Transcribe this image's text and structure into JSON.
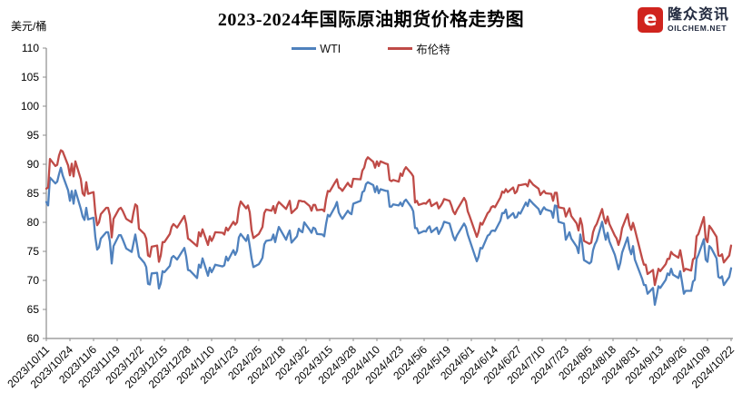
{
  "logo": {
    "brand": "隆众资讯",
    "domain": "OILCHEM.NET",
    "icon_glyph": "e",
    "icon_color": "#d0241e",
    "text_color": "#232b40"
  },
  "chart_data": {
    "type": "line",
    "title": "2023-2024年国际原油期货价格走势图",
    "ylabel_unit": "美元/桶",
    "ylim": [
      60,
      110
    ],
    "ytick_step": 5,
    "grid": false,
    "legend_position": "top-center",
    "axis_color": "#8c8c8c",
    "x_tick_labels": [
      "2023/10/11",
      "2023/10/24",
      "2023/11/6",
      "2023/11/19",
      "2023/12/2",
      "2023/12/15",
      "2023/12/28",
      "2024/1/10",
      "2024/1/23",
      "2024/2/5",
      "2024/2/18",
      "2024/3/2",
      "2024/3/15",
      "2024/3/28",
      "2024/4/10",
      "2024/4/23",
      "2024/5/6",
      "2024/5/19",
      "2024/6/1",
      "2024/6/14",
      "2024/6/27",
      "2024/7/10",
      "2024/7/23",
      "2024/8/5",
      "2024/8/18",
      "2024/8/31",
      "2024/9/13",
      "2024/9/26",
      "2024/10/9",
      "2024/10/22"
    ],
    "trading_days": [
      [
        "2023/10",
        [
          11,
          12,
          13,
          16,
          17,
          18,
          19,
          20,
          23,
          24,
          25,
          26,
          27,
          30,
          31
        ]
      ],
      [
        "2023/11",
        [
          1,
          2,
          3,
          6,
          7,
          8,
          9,
          10,
          13,
          14,
          15,
          16,
          17,
          20,
          21,
          22,
          24,
          27,
          28,
          29,
          30
        ]
      ],
      [
        "2023/12",
        [
          1,
          4,
          5,
          6,
          7,
          8,
          11,
          12,
          13,
          14,
          15,
          18,
          19,
          20,
          21,
          22,
          26,
          27,
          28,
          29
        ]
      ],
      [
        "2024/1",
        [
          2,
          3,
          4,
          5,
          8,
          9,
          10,
          11,
          12,
          16,
          17,
          18,
          19,
          22,
          23,
          24,
          25,
          26,
          29,
          30,
          31
        ]
      ],
      [
        "2024/2",
        [
          1,
          2,
          5,
          6,
          7,
          8,
          9,
          12,
          13,
          14,
          15,
          16,
          20,
          21,
          22,
          23,
          26,
          27,
          28,
          29
        ]
      ],
      [
        "2024/3",
        [
          1,
          4,
          5,
          6,
          7,
          8,
          11,
          12,
          13,
          14,
          15,
          18,
          19,
          20,
          21,
          22,
          25,
          26,
          27,
          28
        ]
      ],
      [
        "2024/4",
        [
          1,
          2,
          3,
          4,
          5,
          8,
          9,
          10,
          11,
          12,
          15,
          16,
          17,
          18,
          19,
          22,
          23,
          24,
          25,
          26,
          29,
          30
        ]
      ],
      [
        "2024/5",
        [
          1,
          2,
          3,
          6,
          7,
          8,
          9,
          10,
          13,
          14,
          15,
          16,
          17,
          20,
          21,
          22,
          23,
          24,
          28,
          29,
          30,
          31
        ]
      ],
      [
        "2024/6",
        [
          3,
          4,
          5,
          6,
          7,
          10,
          11,
          12,
          13,
          14,
          17,
          18,
          19,
          20,
          21,
          24,
          25,
          26,
          27,
          28
        ]
      ],
      [
        "2024/7",
        [
          1,
          2,
          3,
          5,
          8,
          9,
          10,
          11,
          12,
          15,
          16,
          17,
          18,
          19,
          22,
          23,
          24,
          25,
          26,
          29,
          30,
          31
        ]
      ],
      [
        "2024/8",
        [
          1,
          2,
          5,
          6,
          7,
          8,
          9,
          12,
          13,
          14,
          15,
          16,
          19,
          20,
          21,
          22,
          23,
          26,
          27,
          28,
          29,
          30
        ]
      ],
      [
        "2024/9",
        [
          3,
          4,
          5,
          6,
          9,
          10,
          11,
          12,
          13,
          16,
          17,
          18,
          19,
          20,
          23,
          24,
          25,
          26,
          27,
          30
        ]
      ],
      [
        "2024/10",
        [
          1,
          2,
          3,
          4,
          7,
          8,
          9,
          10,
          11,
          14,
          15,
          16,
          17,
          18,
          21,
          22
        ]
      ]
    ],
    "series": [
      {
        "name": "WTI",
        "color": "#4f81bd",
        "values": [
          83.5,
          82.9,
          87.7,
          86.7,
          87.0,
          88.3,
          89.4,
          88.1,
          85.5,
          83.7,
          85.4,
          83.2,
          85.5,
          82.3,
          81.0,
          80.4,
          82.5,
          80.5,
          80.8,
          77.4,
          75.3,
          75.7,
          77.2,
          78.3,
          78.3,
          76.7,
          72.9,
          75.9,
          77.8,
          77.8,
          77.1,
          75.5,
          74.9,
          76.4,
          77.9,
          76.0,
          74.1,
          73.0,
          72.3,
          69.4,
          69.3,
          71.2,
          71.3,
          68.6,
          69.5,
          71.6,
          71.4,
          72.5,
          73.9,
          74.2,
          73.9,
          73.6,
          75.6,
          74.1,
          71.8,
          71.7,
          70.4,
          72.7,
          72.2,
          73.8,
          70.8,
          72.2,
          71.4,
          72.0,
          72.7,
          72.4,
          72.6,
          74.1,
          73.4,
          75.2,
          74.4,
          75.1,
          77.4,
          78.0,
          76.8,
          77.8,
          75.9,
          73.8,
          72.3,
          72.8,
          73.3,
          73.9,
          76.2,
          76.8,
          77.0,
          77.9,
          76.6,
          78.0,
          79.2,
          77.0,
          77.9,
          78.6,
          76.5,
          77.6,
          78.9,
          78.5,
          78.3,
          80.0,
          78.7,
          78.2,
          79.1,
          78.9,
          78.0,
          77.9,
          77.6,
          79.7,
          81.3,
          81.0,
          82.7,
          83.5,
          81.7,
          81.1,
          80.6,
          82.0,
          81.6,
          81.4,
          83.2,
          83.7,
          85.2,
          85.4,
          86.6,
          86.9,
          86.4,
          85.2,
          86.2,
          85.0,
          85.7,
          85.4,
          85.4,
          82.7,
          82.7,
          83.1,
          82.9,
          83.4,
          82.8,
          83.6,
          83.9,
          82.6,
          81.9,
          79.0,
          79.0,
          78.1,
          78.5,
          78.4,
          79.0,
          79.3,
          78.3,
          79.1,
          78.0,
          78.6,
          79.2,
          80.1,
          79.8,
          78.7,
          77.6,
          76.9,
          77.7,
          79.8,
          79.2,
          77.9,
          77.0,
          74.2,
          73.3,
          74.1,
          75.6,
          75.5,
          77.7,
          77.9,
          78.5,
          78.6,
          78.5,
          80.3,
          81.6,
          81.6,
          82.2,
          80.7,
          81.6,
          80.8,
          80.9,
          81.7,
          81.5,
          83.4,
          82.8,
          83.9,
          83.2,
          82.3,
          81.4,
          82.1,
          82.6,
          82.2,
          81.9,
          80.8,
          82.9,
          82.8,
          80.1,
          79.8,
          77.0,
          77.6,
          78.3,
          77.2,
          75.8,
          74.7,
          77.9,
          76.3,
          73.5,
          72.9,
          73.2,
          75.2,
          76.2,
          76.8,
          80.1,
          78.4,
          77.0,
          78.2,
          76.7,
          74.4,
          73.2,
          71.9,
          73.0,
          74.8,
          77.4,
          75.5,
          74.5,
          75.9,
          73.6,
          70.3,
          69.2,
          69.2,
          67.7,
          68.7,
          65.8,
          67.3,
          69.0,
          68.7,
          70.1,
          71.2,
          70.9,
          72.0,
          71.0,
          70.4,
          71.6,
          69.7,
          67.7,
          68.2,
          68.2,
          69.8,
          70.1,
          73.7,
          74.4,
          77.1,
          73.6,
          73.2,
          75.9,
          75.6,
          73.8,
          70.6,
          70.4,
          70.7,
          69.2,
          70.6,
          72.1
        ]
      },
      {
        "name": "布伦特",
        "color": "#bf4b47",
        "values": [
          85.8,
          86.0,
          90.9,
          89.7,
          89.9,
          91.5,
          92.4,
          92.2,
          89.8,
          88.1,
          90.1,
          87.9,
          90.5,
          87.4,
          85.0,
          84.6,
          86.9,
          84.9,
          85.2,
          81.6,
          79.5,
          80.0,
          81.4,
          82.5,
          82.5,
          81.2,
          77.4,
          80.6,
          82.3,
          82.5,
          82.0,
          80.6,
          80.0,
          81.7,
          83.1,
          82.8,
          78.9,
          78.0,
          77.2,
          74.3,
          74.1,
          75.8,
          76.0,
          73.2,
          74.3,
          76.6,
          76.6,
          78.0,
          79.2,
          79.7,
          79.4,
          79.1,
          81.1,
          79.7,
          77.2,
          77.0,
          75.9,
          78.3,
          77.6,
          78.8,
          76.1,
          77.6,
          76.8,
          77.4,
          78.3,
          78.2,
          77.9,
          79.1,
          78.6,
          80.1,
          79.6,
          80.0,
          82.4,
          83.6,
          82.4,
          82.9,
          81.7,
          78.7,
          77.3,
          78.0,
          78.6,
          79.2,
          81.6,
          82.2,
          82.0,
          82.8,
          81.6,
          82.9,
          83.5,
          82.3,
          83.0,
          83.7,
          81.6,
          82.5,
          83.7,
          83.7,
          83.6,
          83.6,
          82.8,
          82.0,
          83.0,
          83.0,
          82.1,
          82.2,
          81.9,
          84.0,
          85.4,
          85.3,
          86.9,
          87.4,
          86.0,
          85.8,
          85.4,
          86.8,
          86.3,
          86.1,
          87.5,
          87.4,
          88.9,
          89.4,
          90.7,
          91.2,
          90.4,
          89.4,
          90.5,
          89.7,
          90.5,
          90.1,
          90.0,
          87.3,
          87.1,
          87.3,
          87.0,
          88.4,
          88.0,
          89.0,
          89.5,
          88.4,
          87.9,
          83.4,
          83.7,
          83.0,
          83.3,
          83.2,
          83.6,
          83.9,
          82.8,
          83.4,
          82.4,
          82.8,
          83.3,
          84.0,
          83.7,
          82.9,
          81.9,
          81.4,
          82.1,
          84.2,
          83.6,
          81.9,
          81.1,
          78.4,
          77.5,
          78.4,
          79.9,
          79.6,
          81.6,
          81.9,
          82.6,
          82.8,
          82.6,
          84.3,
          85.3,
          85.1,
          85.7,
          85.2,
          86.0,
          85.0,
          85.3,
          86.4,
          86.4,
          86.6,
          86.2,
          87.3,
          86.5,
          85.8,
          84.7,
          85.1,
          85.4,
          85.0,
          84.9,
          83.7,
          85.1,
          85.1,
          82.6,
          82.4,
          81.0,
          81.7,
          82.4,
          81.1,
          79.8,
          78.6,
          80.7,
          79.5,
          76.8,
          76.3,
          76.5,
          78.3,
          79.2,
          79.7,
          82.3,
          80.7,
          79.8,
          81.0,
          79.7,
          77.7,
          77.2,
          76.1,
          77.2,
          79.0,
          81.4,
          79.6,
          78.7,
          79.9,
          78.8,
          73.8,
          72.7,
          72.7,
          71.1,
          71.8,
          69.2,
          70.6,
          72.0,
          71.6,
          72.8,
          73.7,
          73.7,
          74.9,
          74.5,
          73.9,
          75.2,
          73.5,
          71.6,
          72.0,
          71.7,
          73.6,
          73.9,
          77.6,
          78.0,
          80.9,
          77.2,
          76.6,
          79.4,
          79.0,
          77.5,
          74.3,
          74.2,
          74.5,
          73.1,
          74.3,
          76.0
        ]
      }
    ]
  }
}
